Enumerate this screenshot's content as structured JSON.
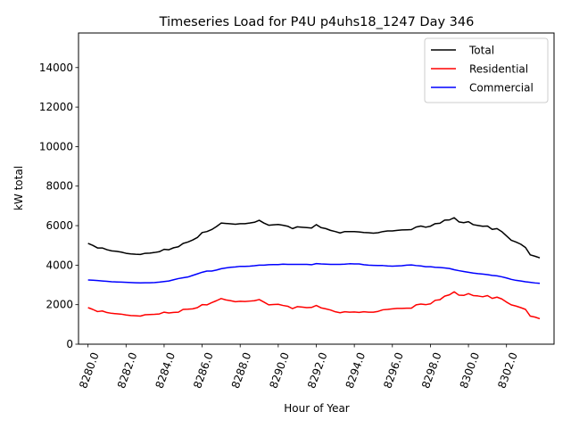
{
  "chart_data": {
    "type": "line",
    "title": "Timeseries Load for P4U p4uhs18_1247  Day 346",
    "xlabel": "Hour of Year",
    "ylabel": "kW total",
    "xlim": [
      8279.5,
      8304.5
    ],
    "ylim": [
      0,
      15750
    ],
    "xticks": [
      8280,
      8282,
      8284,
      8286,
      8288,
      8290,
      8292,
      8294,
      8296,
      8298,
      8300,
      8302
    ],
    "xtick_labels": [
      "8280.0",
      "8282.0",
      "8284.0",
      "8286.0",
      "8288.0",
      "8290.0",
      "8292.0",
      "8294.0",
      "8296.0",
      "8298.0",
      "8300.0",
      "8302.0"
    ],
    "yticks": [
      0,
      2000,
      4000,
      6000,
      8000,
      10000,
      12000,
      14000
    ],
    "ytick_labels": [
      "0",
      "2000",
      "4000",
      "6000",
      "8000",
      "10000",
      "12000",
      "14000"
    ],
    "legend_position": "top-right",
    "x": [
      8280.0,
      8280.25,
      8280.5,
      8280.75,
      8281.0,
      8281.25,
      8281.5,
      8281.75,
      8282.0,
      8282.25,
      8282.5,
      8282.75,
      8283.0,
      8283.25,
      8283.5,
      8283.75,
      8284.0,
      8284.25,
      8284.5,
      8284.75,
      8285.0,
      8285.25,
      8285.5,
      8285.75,
      8286.0,
      8286.25,
      8286.5,
      8286.75,
      8287.0,
      8287.25,
      8287.5,
      8287.75,
      8288.0,
      8288.25,
      8288.5,
      8288.75,
      8289.0,
      8289.25,
      8289.5,
      8289.75,
      8290.0,
      8290.25,
      8290.5,
      8290.75,
      8291.0,
      8291.25,
      8291.5,
      8291.75,
      8292.0,
      8292.25,
      8292.5,
      8292.75,
      8293.0,
      8293.25,
      8293.5,
      8293.75,
      8294.0,
      8294.25,
      8294.5,
      8294.75,
      8295.0,
      8295.25,
      8295.5,
      8295.75,
      8296.0,
      8296.25,
      8296.5,
      8296.75,
      8297.0,
      8297.25,
      8297.5,
      8297.75,
      8298.0,
      8298.25,
      8298.5,
      8298.75,
      8299.0,
      8299.25,
      8299.5,
      8299.75,
      8300.0,
      8300.25,
      8300.5,
      8300.75,
      8301.0,
      8301.25,
      8301.5,
      8301.75,
      8302.0,
      8302.25,
      8302.5,
      8302.75,
      8303.0,
      8303.25,
      8303.5,
      8303.75
    ],
    "series": [
      {
        "name": "Total",
        "color": "#000000",
        "values": [
          5100,
          5000,
          4870,
          4870,
          4780,
          4720,
          4700,
          4660,
          4600,
          4570,
          4550,
          4540,
          4600,
          4610,
          4640,
          4680,
          4800,
          4780,
          4880,
          4930,
          5100,
          5170,
          5270,
          5400,
          5650,
          5700,
          5800,
          5950,
          6130,
          6110,
          6090,
          6070,
          6100,
          6100,
          6130,
          6170,
          6270,
          6130,
          6020,
          6040,
          6060,
          6020,
          5970,
          5850,
          5940,
          5920,
          5900,
          5880,
          6050,
          5900,
          5850,
          5760,
          5700,
          5630,
          5700,
          5700,
          5700,
          5680,
          5650,
          5640,
          5620,
          5640,
          5700,
          5730,
          5730,
          5760,
          5780,
          5790,
          5800,
          5930,
          5980,
          5920,
          5970,
          6100,
          6120,
          6280,
          6290,
          6400,
          6190,
          6150,
          6200,
          6050,
          6010,
          5970,
          5980,
          5810,
          5850,
          5700,
          5480,
          5260,
          5170,
          5060,
          4890,
          4520,
          4450,
          4370
        ]
      },
      {
        "name": "Residential",
        "color": "#ff0000",
        "values": [
          1850,
          1760,
          1650,
          1680,
          1600,
          1560,
          1540,
          1520,
          1480,
          1450,
          1440,
          1420,
          1490,
          1500,
          1510,
          1530,
          1620,
          1580,
          1610,
          1620,
          1760,
          1770,
          1790,
          1850,
          2000,
          1990,
          2100,
          2200,
          2310,
          2240,
          2200,
          2150,
          2170,
          2160,
          2180,
          2200,
          2260,
          2130,
          1990,
          2010,
          2020,
          1960,
          1920,
          1800,
          1900,
          1880,
          1850,
          1860,
          1960,
          1840,
          1790,
          1730,
          1640,
          1590,
          1640,
          1620,
          1630,
          1610,
          1640,
          1620,
          1620,
          1660,
          1740,
          1760,
          1790,
          1810,
          1810,
          1820,
          1820,
          1990,
          2030,
          2000,
          2040,
          2220,
          2250,
          2430,
          2500,
          2650,
          2480,
          2470,
          2560,
          2460,
          2440,
          2400,
          2460,
          2320,
          2380,
          2290,
          2130,
          1990,
          1930,
          1850,
          1760,
          1420,
          1370,
          1290
        ]
      },
      {
        "name": "Commercial",
        "color": "#0000ff",
        "values": [
          3250,
          3240,
          3220,
          3200,
          3180,
          3160,
          3150,
          3140,
          3130,
          3120,
          3110,
          3100,
          3110,
          3110,
          3120,
          3140,
          3170,
          3200,
          3260,
          3320,
          3360,
          3400,
          3480,
          3560,
          3640,
          3700,
          3700,
          3750,
          3820,
          3860,
          3890,
          3910,
          3940,
          3940,
          3950,
          3970,
          4000,
          4000,
          4020,
          4030,
          4030,
          4050,
          4040,
          4040,
          4040,
          4040,
          4040,
          4020,
          4080,
          4060,
          4050,
          4040,
          4040,
          4040,
          4050,
          4070,
          4060,
          4060,
          4020,
          4000,
          3990,
          3980,
          3980,
          3960,
          3950,
          3960,
          3970,
          4000,
          4010,
          3980,
          3960,
          3920,
          3920,
          3890,
          3880,
          3860,
          3830,
          3770,
          3720,
          3680,
          3640,
          3600,
          3570,
          3550,
          3520,
          3480,
          3460,
          3410,
          3350,
          3280,
          3230,
          3200,
          3160,
          3130,
          3100,
          3080
        ]
      }
    ]
  }
}
